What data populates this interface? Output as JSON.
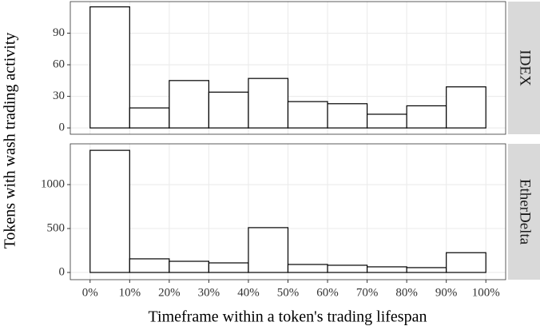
{
  "xlabel": "Timeframe within a token's trading lifespan",
  "ylabel": "Tokens with wash trading activity",
  "chart_data": [
    {
      "type": "histogram",
      "facet": "IDEX",
      "bins": [
        0,
        10,
        20,
        30,
        40,
        50,
        60,
        70,
        80,
        90,
        100
      ],
      "values": [
        115,
        19,
        45,
        34,
        47,
        25,
        23,
        13,
        21,
        39
      ],
      "color": "#ffffff",
      "xlim": [
        -5,
        105
      ],
      "ylim": [
        -6,
        120
      ],
      "yticks": [
        0,
        30,
        60,
        90
      ],
      "grid": true
    },
    {
      "type": "histogram",
      "facet": "EtherDelta",
      "bins": [
        0,
        10,
        20,
        30,
        40,
        50,
        60,
        70,
        80,
        90,
        100
      ],
      "values": [
        1390,
        155,
        127,
        109,
        510,
        91,
        82,
        64,
        55,
        225
      ],
      "color": "#ffffff",
      "xlim": [
        -5,
        105
      ],
      "xticks": [
        {
          "value": 0,
          "label": "0%"
        },
        {
          "value": 10,
          "label": "10%"
        },
        {
          "value": 20,
          "label": "20%"
        },
        {
          "value": 30,
          "label": "30%"
        },
        {
          "value": 40,
          "label": "40%"
        },
        {
          "value": 50,
          "label": "50%"
        },
        {
          "value": 60,
          "label": "60%"
        },
        {
          "value": 70,
          "label": "70%"
        },
        {
          "value": 80,
          "label": "80%"
        },
        {
          "value": 90,
          "label": "90%"
        },
        {
          "value": 100,
          "label": "100%"
        }
      ],
      "ylim": [
        -82,
        1464
      ],
      "yticks": [
        0,
        500,
        1000
      ],
      "grid": true
    }
  ]
}
